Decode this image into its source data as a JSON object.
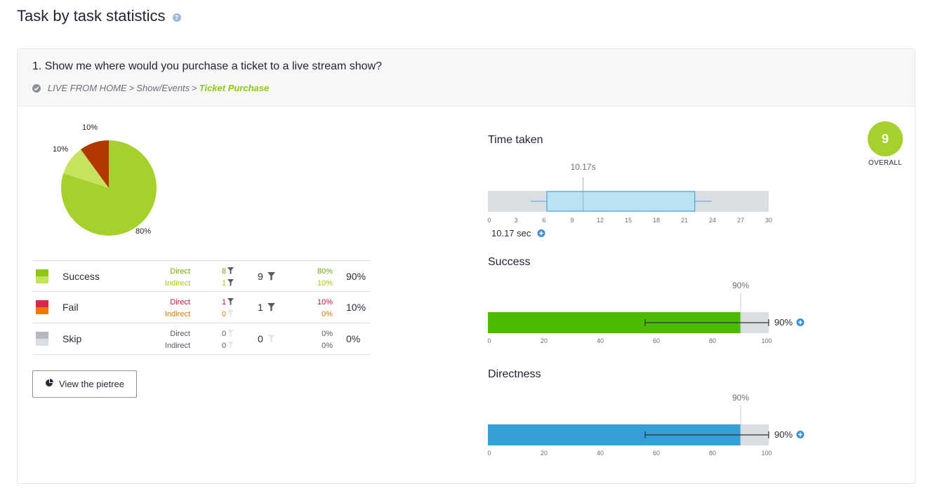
{
  "page": {
    "title": "Task by task statistics",
    "help_icon": "?"
  },
  "task": {
    "title": "1. Show me where would you purchase a ticket to a live stream show?",
    "breadcrumb": [
      "LIVE FROM HOME",
      "Show/Events",
      "Ticket Purchase"
    ],
    "breadcrumb_sep": ">",
    "check_icon": "check-circle-icon"
  },
  "pie": {
    "slices": [
      {
        "label": "80%",
        "value": 80,
        "color": "#a6d12d"
      },
      {
        "label": "10%",
        "value": 10,
        "color": "#c5e35c"
      },
      {
        "label": "10%",
        "value": 10,
        "color": "#b33800"
      }
    ]
  },
  "stats": {
    "rows": [
      {
        "label": "Success",
        "swatch": [
          "#8cc814",
          "#c5e35c"
        ],
        "direct_label": "Direct",
        "indirect_label": "Indirect",
        "direct_count": "8",
        "indirect_count": "1",
        "total_count": "9",
        "direct_pct": "80%",
        "indirect_pct": "10%",
        "total_pct": "90%",
        "direct_color": "#6fa80e",
        "indirect_color": "#a6c81a",
        "filter": true
      },
      {
        "label": "Fail",
        "swatch": [
          "#d6284a",
          "#f07800"
        ],
        "direct_label": "Direct",
        "indirect_label": "Indirect",
        "direct_count": "1",
        "indirect_count": "0",
        "total_count": "1",
        "direct_pct": "10%",
        "indirect_pct": "0%",
        "total_pct": "10%",
        "direct_color": "#c8153a",
        "indirect_color": "#e07800",
        "filter": true
      },
      {
        "label": "Skip",
        "swatch": [
          "#b4b8bf",
          "#dadde2"
        ],
        "direct_label": "Direct",
        "indirect_label": "Indirect",
        "direct_count": "0",
        "indirect_count": "0",
        "total_count": "0",
        "direct_pct": "0%",
        "indirect_pct": "0%",
        "total_pct": "0%",
        "direct_color": "#555a66",
        "indirect_color": "#555a66",
        "filter": false
      }
    ]
  },
  "pietree_button": {
    "label": "View the pietree",
    "icon": "pie-chart-icon"
  },
  "overall": {
    "score": "9",
    "label": "OVERALL",
    "color": "#a6d12d"
  },
  "time_taken": {
    "title": "Time taken",
    "median_label": "10.17s",
    "summary": "10.17 sec",
    "axis_ticks": [
      "0",
      "3",
      "6",
      "9",
      "12",
      "15",
      "18",
      "21",
      "24",
      "27",
      "30"
    ],
    "axis_max": 30,
    "whisker_low": 4.6,
    "q1": 6.3,
    "median": 10.17,
    "q3": 22.1,
    "whisker_high": 23.9,
    "box_color": "#b9e2f2",
    "box_stroke": "#4aa9d8"
  },
  "success": {
    "title": "Success",
    "value": 90,
    "value_label": "90%",
    "summary": "90%",
    "ci_low": 56,
    "ci_high": 100,
    "bar_color": "#4cbb00",
    "axis_ticks": [
      "0",
      "20",
      "40",
      "60",
      "80",
      "100"
    ],
    "axis_max": 100
  },
  "directness": {
    "title": "Directness",
    "value": 90,
    "value_label": "90%",
    "summary": "90%",
    "ci_low": 56,
    "ci_high": 100,
    "bar_color": "#36a0d6",
    "axis_ticks": [
      "0",
      "20",
      "40",
      "60",
      "80",
      "100"
    ],
    "axis_max": 100
  },
  "chart_data": [
    {
      "type": "pie",
      "categories": [
        "Success (direct)",
        "Success (indirect)",
        "Fail (direct)"
      ],
      "values": [
        80,
        10,
        10
      ]
    },
    {
      "type": "box",
      "title": "Time taken",
      "xlim": [
        0,
        30
      ],
      "median": 10.17,
      "q1": 6.3,
      "q3": 22.1,
      "whisker_low": 4.6,
      "whisker_high": 23.9
    },
    {
      "type": "bar",
      "title": "Success",
      "xlim": [
        0,
        100
      ],
      "values": [
        90
      ],
      "ci": [
        56,
        100
      ]
    },
    {
      "type": "bar",
      "title": "Directness",
      "xlim": [
        0,
        100
      ],
      "values": [
        90
      ],
      "ci": [
        56,
        100
      ]
    }
  ]
}
